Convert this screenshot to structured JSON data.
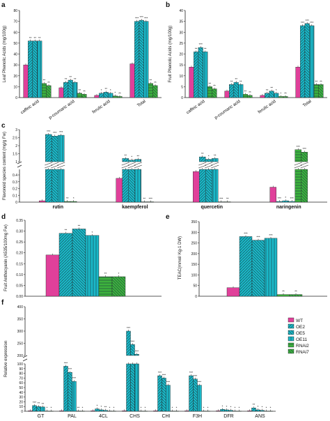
{
  "colors": {
    "WT": "#e0409a",
    "OE": "#1ab8c8",
    "RNAi": "#3db23d",
    "axis": "#222222"
  },
  "legend": [
    "WT",
    "OE2",
    "OE5",
    "OE11",
    "RNAi2",
    "RNAi7"
  ],
  "chart_data": [
    {
      "panel": "a",
      "type": "bar",
      "ylabel": "Leaf Phenolic Acids (mg/100g)",
      "ylim": [
        0,
        80
      ],
      "yticks": [
        0,
        10,
        20,
        30,
        40,
        50,
        60,
        70,
        80
      ],
      "categories": [
        "caffeic acid",
        "p-coumaric acid",
        "ferulic acid",
        "Total"
      ],
      "series": [
        {
          "name": "WT",
          "values": [
            30,
            9,
            2,
            31
          ]
        },
        {
          "name": "OE2",
          "values": [
            52,
            14,
            4,
            70
          ]
        },
        {
          "name": "OE5",
          "values": [
            52,
            16,
            5,
            71
          ]
        },
        {
          "name": "OE11",
          "values": [
            52,
            14,
            4,
            70
          ]
        },
        {
          "name": "RNAi2",
          "values": [
            13,
            4,
            1.5,
            13
          ]
        },
        {
          "name": "RNAi7",
          "values": [
            11,
            3,
            1,
            11
          ]
        }
      ],
      "sig": [
        [
          "",
          "**",
          "**",
          "**",
          "**",
          "**"
        ],
        [
          "",
          "**",
          "**",
          "**",
          "**",
          "**"
        ],
        [
          "",
          "*",
          "**",
          "*",
          "*",
          "**"
        ],
        [
          "",
          "***",
          "***",
          "***",
          "**",
          "**"
        ]
      ]
    },
    {
      "panel": "b",
      "type": "bar",
      "ylabel": "Fruit Phenolic Acids (mg/100g)",
      "ylim": [
        0,
        40
      ],
      "yticks": [
        0,
        5,
        10,
        15,
        20,
        25,
        30,
        35,
        40
      ],
      "categories": [
        "caffeic acid",
        "p-coumaric acid",
        "ferulic acid",
        "Total"
      ],
      "series": [
        {
          "name": "WT",
          "values": [
            14,
            3,
            1,
            14
          ]
        },
        {
          "name": "OE2",
          "values": [
            21,
            6,
            2,
            33
          ]
        },
        {
          "name": "OE5",
          "values": [
            23,
            7,
            3,
            34
          ]
        },
        {
          "name": "OE11",
          "values": [
            21,
            6,
            2,
            33
          ]
        },
        {
          "name": "RNAi2",
          "values": [
            5,
            1.5,
            0.5,
            6
          ]
        },
        {
          "name": "RNAi7",
          "values": [
            4,
            1,
            0.5,
            6
          ]
        }
      ],
      "sig": [
        [
          "",
          "**",
          "***",
          "**",
          "**",
          "**"
        ],
        [
          "",
          "**",
          "**",
          "**",
          "**",
          "**"
        ],
        [
          "",
          "**",
          "**",
          "*",
          "*",
          "**"
        ],
        [
          "",
          "***",
          "***",
          "***",
          "**",
          "**"
        ]
      ]
    },
    {
      "panel": "c",
      "type": "bar",
      "ylabel": "Flavonoid species content (mg/g Fw)",
      "yticks_lower": [
        0,
        0.1,
        0.2,
        0.3,
        0.4
      ],
      "yticks_upper": [
        1,
        1.5,
        2,
        2.5,
        3
      ],
      "categories": [
        "rutin",
        "kaempferol",
        "quercetin",
        "naringenin"
      ],
      "series": [
        {
          "name": "WT",
          "values": [
            0.02,
            0.35,
            0.45,
            0.22
          ]
        },
        {
          "name": "OE2",
          "values": [
            2.7,
            1.2,
            1.3,
            0.01
          ]
        },
        {
          "name": "OE5",
          "values": [
            2.6,
            1.1,
            1.15,
            0.02
          ]
        },
        {
          "name": "OE11",
          "values": [
            2.65,
            1.15,
            1.2,
            0.01
          ]
        },
        {
          "name": "RNAi2",
          "values": [
            0.01,
            0.005,
            0.005,
            1.75
          ]
        },
        {
          "name": "RNAi7",
          "values": [
            0.01,
            0.005,
            0.005,
            1.6
          ]
        }
      ],
      "sig": [
        [
          "",
          "***",
          "***",
          "***",
          "**",
          "*"
        ],
        [
          "",
          "**",
          "*",
          "**",
          "**",
          "***"
        ],
        [
          "",
          "**",
          "*",
          "**",
          "***",
          "**"
        ],
        [
          "",
          "***",
          "*",
          "***",
          "***",
          "***"
        ]
      ]
    },
    {
      "panel": "d",
      "type": "bar",
      "ylabel": "Fruit Anthocyanin (A535/100mg Fw)",
      "ylim": [
        0,
        0.35
      ],
      "yticks": [
        0,
        0.05,
        0.1,
        0.15,
        0.2,
        0.25,
        0.3,
        0.35
      ],
      "categories": [
        "WT",
        "OE2",
        "OE5",
        "OE11",
        "RNAi2",
        "RNAi7"
      ],
      "values": [
        0.19,
        0.29,
        0.31,
        0.28,
        0.09,
        0.09
      ],
      "sig": [
        "",
        "**",
        "**",
        "*",
        "**",
        "*"
      ]
    },
    {
      "panel": "e",
      "type": "bar",
      "ylabel": "TEAC(mmol/ Kg-1 DW)",
      "ylim": [
        0,
        350
      ],
      "yticks": [
        0,
        50,
        100,
        150,
        200,
        250,
        300,
        350
      ],
      "categories": [
        "WT",
        "OE2",
        "OE5",
        "OE11",
        "RNAi2",
        "RNAi7"
      ],
      "values": [
        40,
        280,
        263,
        272,
        8,
        8
      ],
      "sig": [
        "",
        "***",
        "***",
        "***",
        "**",
        "**"
      ]
    },
    {
      "panel": "f",
      "type": "bar",
      "ylabel": "Relative expression",
      "yticks_lower": [
        0,
        10,
        20,
        30,
        40,
        50,
        60,
        70,
        80,
        90,
        100
      ],
      "yticks_upper": [
        200,
        250,
        300,
        350,
        400
      ],
      "categories": [
        "GT",
        "PAL",
        "4CL",
        "CHS",
        "CHI",
        "F3H",
        "DFR",
        "ANS"
      ],
      "series": [
        {
          "name": "WT",
          "values": [
            1,
            1,
            1,
            1,
            1,
            1,
            1,
            1
          ]
        },
        {
          "name": "OE2",
          "values": [
            12,
            95,
            5,
            300,
            75,
            75,
            4,
            7
          ]
        },
        {
          "name": "OE5",
          "values": [
            10,
            82,
            3,
            245,
            70,
            68,
            3,
            3
          ]
        },
        {
          "name": "OE11",
          "values": [
            9,
            63,
            2,
            205,
            55,
            55,
            2,
            2
          ]
        },
        {
          "name": "RNAi2",
          "values": [
            0.5,
            0.6,
            0.6,
            0.5,
            0.5,
            0.5,
            0.5,
            0.5
          ]
        },
        {
          "name": "RNAi7",
          "values": [
            0.4,
            0.4,
            0.4,
            0.4,
            0.4,
            0.4,
            0.4,
            0.4
          ]
        }
      ],
      "sig": [
        [
          "",
          "***",
          "**",
          "**",
          "*",
          "*"
        ],
        [
          "",
          "***",
          "***",
          "***",
          "**",
          "*"
        ],
        [
          "",
          "*",
          "*",
          "**",
          "*",
          "*"
        ],
        [
          "",
          "***",
          "***",
          "***",
          "*",
          "*"
        ],
        [
          "",
          "***",
          "***",
          "***",
          "*",
          "*"
        ],
        [
          "",
          "***",
          "***",
          "***",
          "*",
          "*"
        ],
        [
          "",
          "*",
          "*",
          "*",
          "*",
          "*"
        ],
        [
          "",
          "**",
          "*",
          "*",
          "*",
          "*"
        ]
      ]
    }
  ]
}
